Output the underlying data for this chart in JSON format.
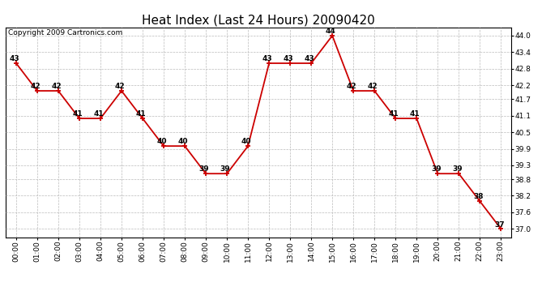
{
  "title": "Heat Index (Last 24 Hours) 20090420",
  "copyright": "Copyright 2009 Cartronics.com",
  "hours": [
    0,
    1,
    2,
    3,
    4,
    5,
    6,
    7,
    8,
    9,
    10,
    11,
    12,
    13,
    14,
    15,
    16,
    17,
    18,
    19,
    20,
    21,
    22,
    23
  ],
  "values": [
    43,
    42,
    42,
    41,
    41,
    42,
    41,
    40,
    40,
    39,
    39,
    40,
    43,
    43,
    43,
    44,
    42,
    42,
    41,
    41,
    39,
    39,
    38,
    37
  ],
  "xlabels": [
    "00:00",
    "01:00",
    "02:00",
    "03:00",
    "04:00",
    "05:00",
    "06:00",
    "07:00",
    "08:00",
    "09:00",
    "10:00",
    "11:00",
    "12:00",
    "13:00",
    "14:00",
    "15:00",
    "16:00",
    "17:00",
    "18:00",
    "19:00",
    "20:00",
    "21:00",
    "22:00",
    "23:00"
  ],
  "yticks": [
    37.0,
    37.6,
    38.2,
    38.8,
    39.3,
    39.9,
    40.5,
    41.1,
    41.7,
    42.2,
    42.8,
    43.4,
    44.0
  ],
  "ylim": [
    36.7,
    44.3
  ],
  "line_color": "#cc0000",
  "marker_color": "#cc0000",
  "grid_color": "#bbbbbb",
  "bg_color": "#ffffff",
  "title_fontsize": 11,
  "label_fontsize": 6.5,
  "copyright_fontsize": 6.5,
  "data_label_fontsize": 6.5
}
